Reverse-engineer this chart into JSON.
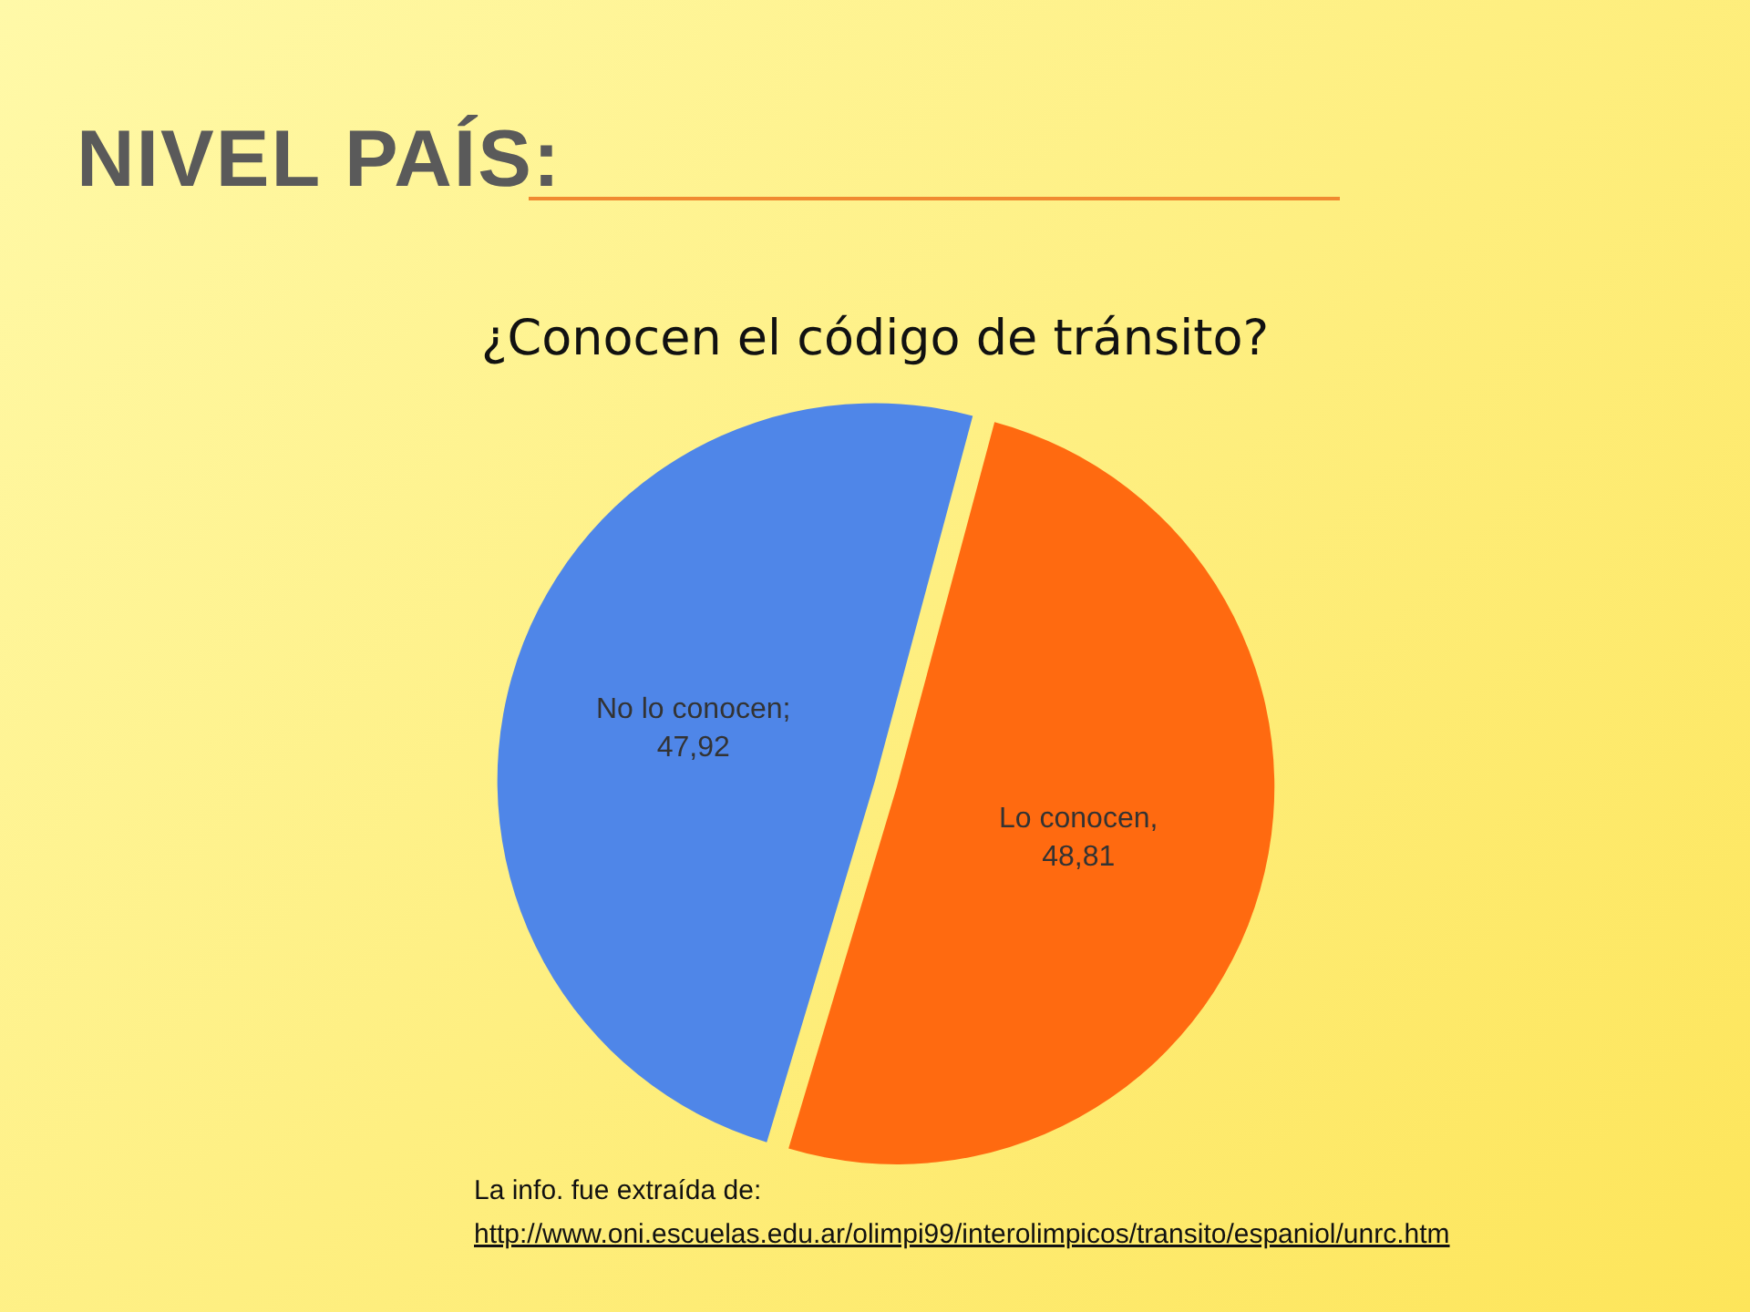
{
  "chart_data": {
    "type": "pie",
    "title": "NIVEL PAÍS:",
    "subtitle": "¿Conocen el código de tránsito?",
    "categories": [
      "Lo conocen",
      "No lo conocen"
    ],
    "values": [
      48.81,
      47.92
    ],
    "value_labels": [
      ", 48,81",
      "; 47,92"
    ],
    "colors": [
      "#ff6a10",
      "#4f86e8"
    ],
    "legend": false,
    "annotations": [
      "La info. fue extraída de:",
      "http://www.oni.escuelas.edu.ar/olimpi99/interolimpicos/transito/espaniol/unrc.htm"
    ]
  }
}
